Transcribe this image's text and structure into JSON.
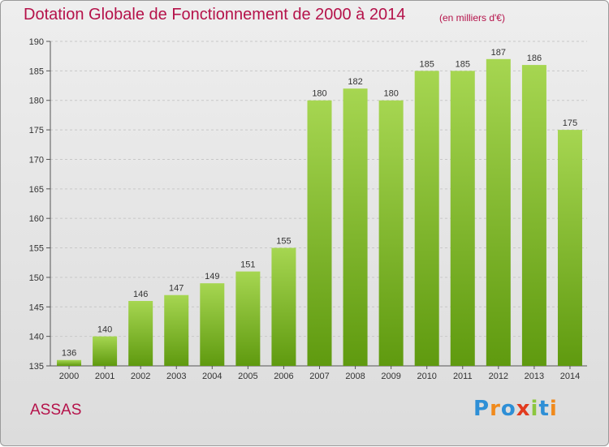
{
  "header": {
    "title": "Dotation Globale de Fonctionnement de 2000 à 2014",
    "subtitle": "(en milliers d'€)"
  },
  "footer": {
    "commune": "ASSAS",
    "logo_text": "Proxiti"
  },
  "colors": {
    "title": "#b5124a",
    "bar_top": "#a6d651",
    "bar_bottom": "#5f9a0f",
    "grid": "#c8c8c8"
  },
  "chart_data": {
    "type": "bar",
    "title": "Dotation Globale de Fonctionnement de 2000 à 2014",
    "subtitle": "(en milliers d'€)",
    "xlabel": "",
    "ylabel": "",
    "categories": [
      "2000",
      "2001",
      "2002",
      "2003",
      "2004",
      "2005",
      "2006",
      "2007",
      "2008",
      "2009",
      "2010",
      "2011",
      "2012",
      "2013",
      "2014"
    ],
    "values": [
      136,
      140,
      146,
      147,
      149,
      151,
      155,
      180,
      182,
      180,
      185,
      185,
      187,
      186,
      175
    ],
    "ylim": [
      135,
      190
    ],
    "yticks": [
      135,
      140,
      145,
      150,
      155,
      160,
      165,
      170,
      175,
      180,
      185,
      190
    ],
    "grid": true,
    "legend": "none"
  }
}
